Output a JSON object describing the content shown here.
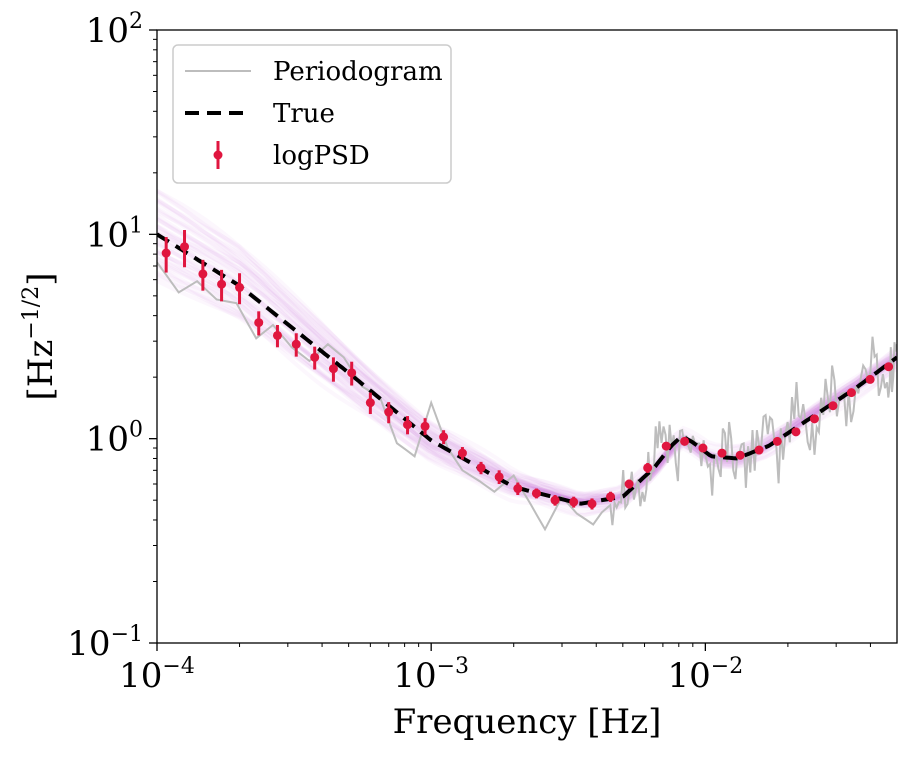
{
  "chart_data": {
    "type": "line",
    "title": "",
    "xlabel": "Frequency [Hz]",
    "ylabel": "[Hz^{-1/2}]",
    "ylabel_parts": {
      "open": "[Hz",
      "exp": "−1/2",
      "close": "]"
    },
    "xscale": "log",
    "yscale": "log",
    "xlim": [
      0.0001,
      0.05
    ],
    "ylim": [
      0.1,
      100
    ],
    "x_ticks": [
      {
        "value": 0.0001,
        "base": "10",
        "exp": "−4"
      },
      {
        "value": 0.001,
        "base": "10",
        "exp": "−3"
      },
      {
        "value": 0.01,
        "base": "10",
        "exp": "−2"
      }
    ],
    "y_ticks": [
      {
        "value": 0.1,
        "base": "10",
        "exp": "−1"
      },
      {
        "value": 1,
        "base": "10",
        "exp": "0"
      },
      {
        "value": 10,
        "base": "10",
        "exp": "1"
      },
      {
        "value": 100,
        "base": "10",
        "exp": "2"
      }
    ],
    "legend": {
      "location": "top-left",
      "entries": [
        {
          "label": "Periodogram",
          "color": "#bdbdbd",
          "style": "line"
        },
        {
          "label": "True",
          "color": "#000000",
          "style": "dashed"
        },
        {
          "label": "logPSD",
          "color": "#e0163f",
          "style": "errorbar"
        }
      ]
    },
    "series": [
      {
        "name": "True",
        "color": "#000000",
        "style": "dashed",
        "x": [
          0.0001,
          0.0002,
          0.0005,
          0.001,
          0.002,
          0.0035,
          0.005,
          0.0065,
          0.0075,
          0.0082,
          0.009,
          0.0105,
          0.013,
          0.017,
          0.025,
          0.035,
          0.05
        ],
        "y": [
          10.0,
          5.6,
          2.1,
          0.98,
          0.58,
          0.48,
          0.52,
          0.72,
          0.92,
          1.03,
          0.96,
          0.82,
          0.8,
          0.92,
          1.3,
          1.75,
          2.5
        ]
      },
      {
        "name": "logPSD",
        "color": "#e0163f",
        "style": "errorbar",
        "x": [
          0.000108,
          0.000126,
          0.000147,
          0.000172,
          0.0002,
          0.000235,
          0.000275,
          0.000322,
          0.000376,
          0.00044,
          0.000513,
          0.0006,
          0.0007,
          0.00082,
          0.00095,
          0.00111,
          0.0013,
          0.00152,
          0.00177,
          0.00207,
          0.00242,
          0.00283,
          0.00331,
          0.00386,
          0.00451,
          0.00527,
          0.00616,
          0.0072,
          0.0084,
          0.0098,
          0.0115,
          0.0134,
          0.0157,
          0.0183,
          0.0214,
          0.025,
          0.0292,
          0.0341,
          0.0399,
          0.0466
        ],
        "y": [
          8.1,
          8.7,
          6.4,
          5.7,
          5.5,
          3.7,
          3.2,
          2.9,
          2.5,
          2.2,
          2.1,
          1.5,
          1.35,
          1.17,
          1.15,
          1.02,
          0.85,
          0.72,
          0.65,
          0.57,
          0.54,
          0.5,
          0.49,
          0.48,
          0.52,
          0.6,
          0.72,
          0.92,
          0.97,
          0.9,
          0.85,
          0.83,
          0.88,
          0.97,
          1.08,
          1.25,
          1.45,
          1.68,
          1.95,
          2.25
        ],
        "yerr": [
          1.6,
          1.8,
          1.1,
          1.0,
          0.95,
          0.5,
          0.4,
          0.38,
          0.32,
          0.3,
          0.28,
          0.18,
          0.16,
          0.12,
          0.11,
          0.08,
          0.06,
          0.05,
          0.05,
          0.04,
          0.03,
          0.03,
          0.03,
          0.03,
          0.03,
          0.03,
          0.04,
          0.04,
          0.04,
          0.04,
          0.04,
          0.04,
          0.04,
          0.04,
          0.04,
          0.05,
          0.05,
          0.06,
          0.06,
          0.07
        ]
      },
      {
        "name": "Periodogram",
        "color": "#bdbdbd",
        "style": "line",
        "x": [
          0.0001,
          0.00012,
          0.00014,
          0.000165,
          0.000195,
          0.00023,
          0.000265,
          0.00031,
          0.00036,
          0.00042,
          0.00048,
          0.00056,
          0.00065,
          0.00075,
          0.00087,
          0.001,
          0.00115,
          0.0013,
          0.0015,
          0.0017,
          0.002,
          0.0023,
          0.0026,
          0.003,
          0.0034,
          0.0039,
          0.0045,
          0.0052,
          0.006,
          0.0068,
          0.0078,
          0.009,
          0.0104,
          0.012,
          0.0138,
          0.016,
          0.0185,
          0.0215,
          0.025,
          0.029,
          0.034,
          0.04,
          0.046,
          0.05
        ],
        "y": [
          7.3,
          5.2,
          5.9,
          4.8,
          4.6,
          3.1,
          3.6,
          2.8,
          2.4,
          2.9,
          2.5,
          1.8,
          1.6,
          0.95,
          0.82,
          1.5,
          0.9,
          0.7,
          0.62,
          0.55,
          0.66,
          0.48,
          0.36,
          0.52,
          0.43,
          0.38,
          0.5,
          0.65,
          0.52,
          1.15,
          0.75,
          1.2,
          0.65,
          1.0,
          0.7,
          1.15,
          0.8,
          1.5,
          1.0,
          1.9,
          1.4,
          2.5,
          1.8,
          2.9
        ]
      }
    ],
    "posterior_band": {
      "name": "posterior samples",
      "color": "#cc66dd"
    }
  }
}
